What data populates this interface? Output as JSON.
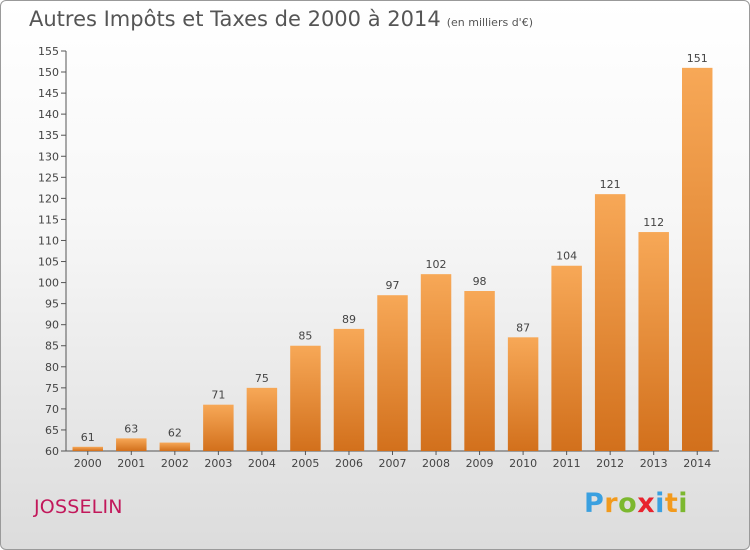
{
  "chart_data": {
    "type": "bar",
    "title": "Autres Impôts et Taxes de 2000 à 2014",
    "unit": "(en milliers d'€)",
    "xlabel": "",
    "ylabel": "",
    "categories": [
      "2000",
      "2001",
      "2002",
      "2003",
      "2004",
      "2005",
      "2006",
      "2007",
      "2008",
      "2009",
      "2010",
      "2011",
      "2012",
      "2013",
      "2014"
    ],
    "values": [
      61,
      63,
      62,
      71,
      75,
      85,
      89,
      97,
      102,
      98,
      87,
      104,
      121,
      112,
      151
    ],
    "ylim": [
      60,
      155
    ],
    "ytick_step": 5,
    "grid": false,
    "legend": "none",
    "bar_color_light": "#f7a857",
    "bar_color_dark": "#d2701c"
  },
  "footer": {
    "place": "JOSSELIN",
    "logo": [
      "P",
      "r",
      "o",
      "x",
      "i",
      "t",
      "i"
    ],
    "logo_colors": [
      "#3aa0e0",
      "#f29a1c",
      "#7cb82f",
      "#e8232e",
      "#3aa0e0",
      "#f29a1c",
      "#7cb82f"
    ],
    "place_color": "#c2185b"
  }
}
